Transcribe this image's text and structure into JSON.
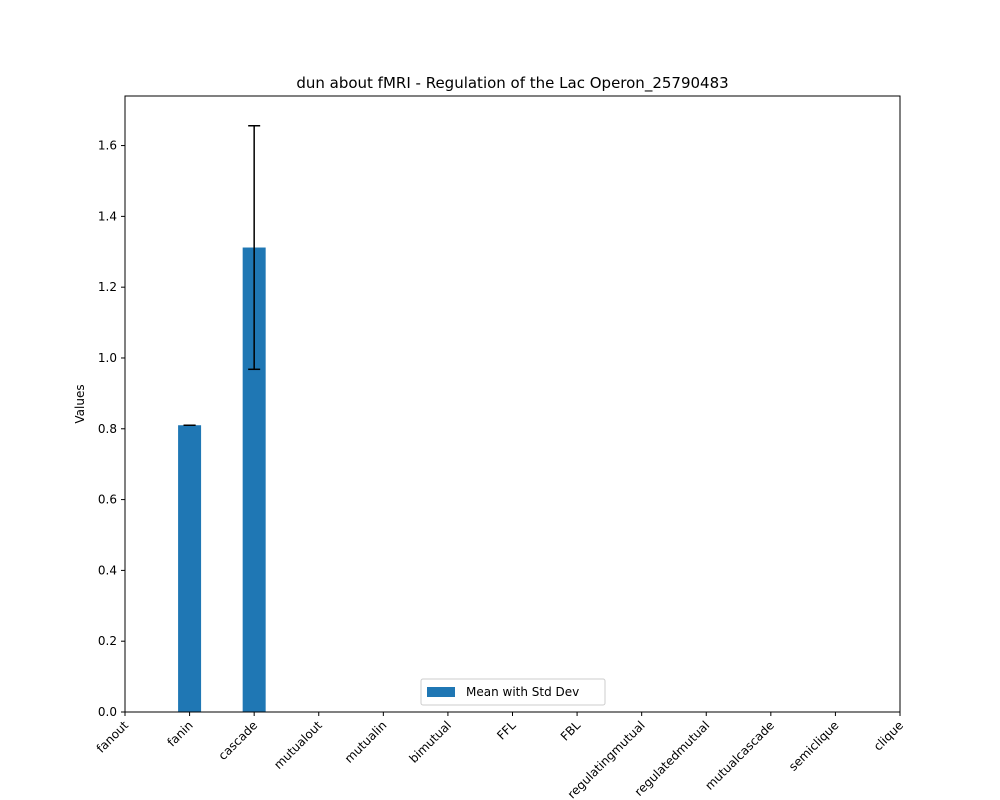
{
  "chart_data": {
    "type": "bar",
    "title": "dun about fMRI - Regulation of the Lac Operon_25790483",
    "xlabel": "",
    "ylabel": "Values",
    "categories": [
      "fanout",
      "fanin",
      "cascade",
      "mutualout",
      "mutualin",
      "bimutual",
      "FFL",
      "FBL",
      "regulatingmutual",
      "regulatedmutual",
      "mutualcascade",
      "semiclique",
      "clique"
    ],
    "values": [
      0,
      0.81,
      1.312,
      0,
      0,
      0,
      0,
      0,
      0,
      0,
      0,
      0,
      0
    ],
    "errors": [
      0,
      0,
      0.344,
      0,
      0,
      0,
      0,
      0,
      0,
      0,
      0,
      0,
      0
    ],
    "ylim": [
      0,
      1.74
    ],
    "yticks": [
      "0.0",
      "0.2",
      "0.4",
      "0.6",
      "0.8",
      "1.0",
      "1.2",
      "1.4",
      "1.6"
    ],
    "series": [
      {
        "name": "Mean with Std Dev",
        "color": "#1f77b4"
      }
    ],
    "legend_position": "lower center",
    "grid": false
  }
}
